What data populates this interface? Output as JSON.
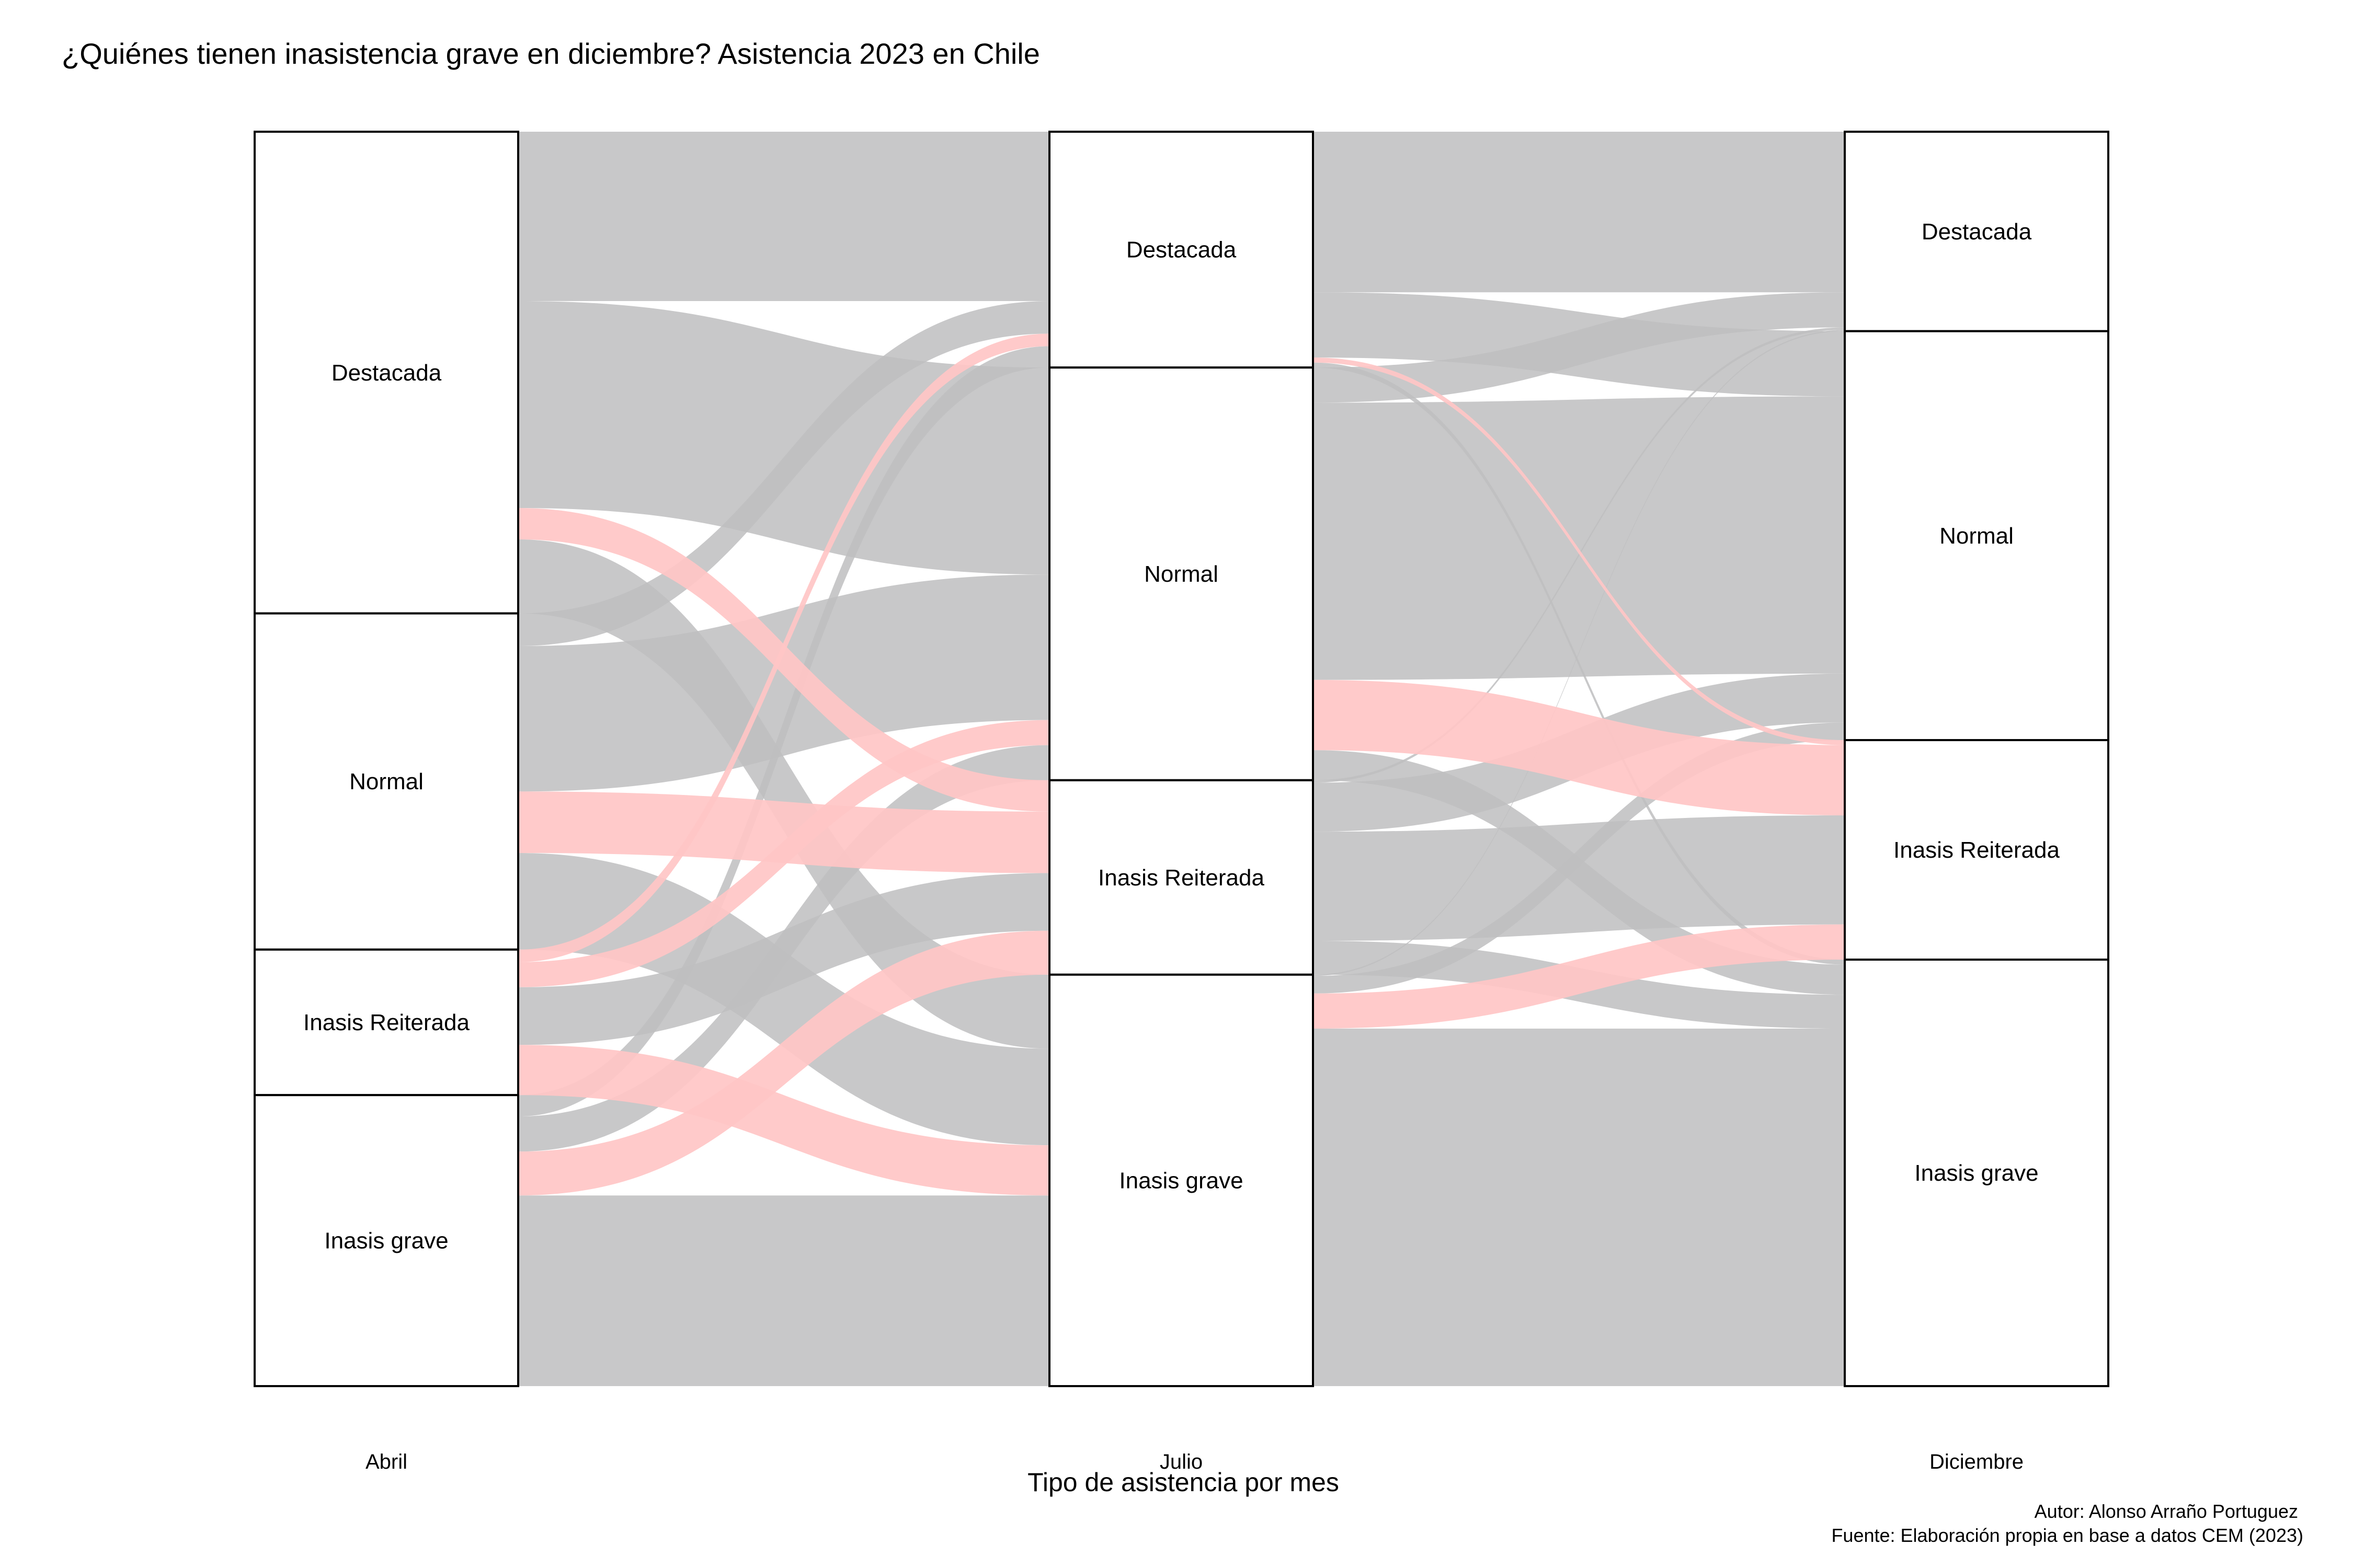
{
  "chart_data": {
    "type": "alluvial",
    "title": "¿Quiénes tienen inasistencia grave en diciembre? Asistencia 2023 en Chile",
    "xlabel": "Tipo de asistencia por mes",
    "axes": [
      "Abril",
      "Julio",
      "Diciembre"
    ],
    "categories": [
      "Destacada",
      "Normal",
      "Inasis Reiterada",
      "Inasis grave"
    ],
    "highlight_target": "Inasis Reiterada",
    "colors": {
      "highlight": "#ffc6c6",
      "flow": "#bebec0",
      "node_stroke": "#000000",
      "node_fill": "#ffffff"
    },
    "stratum_shares": {
      "Abril": [
        0.384,
        0.268,
        0.116,
        0.232
      ],
      "Julio": [
        0.188,
        0.329,
        0.155,
        0.328
      ],
      "Diciembre": [
        0.159,
        0.326,
        0.175,
        0.34
      ]
    },
    "flows_abril_julio": {
      "Destacada": [
        0.135,
        0.165,
        0.025,
        0.059
      ],
      "Normal": [
        0.026,
        0.116,
        0.049,
        0.077
      ],
      "Inasis Reiterada": [
        0.01,
        0.02,
        0.046,
        0.04
      ],
      "Inasis grave": [
        0.017,
        0.028,
        0.035,
        0.152
      ]
    },
    "flows_julio_diciembre": {
      "Destacada": [
        0.128,
        0.052,
        0.004,
        0.004
      ],
      "Normal": [
        0.028,
        0.221,
        0.056,
        0.024
      ],
      "Inasis Reiterada": [
        0.002,
        0.039,
        0.087,
        0.027
      ],
      "Inasis grave": [
        0.001,
        0.014,
        0.028,
        0.285
      ]
    },
    "caption": {
      "author": "Autor: Alonso Arraño Portuguez",
      "source": "Fuente: Elaboración propia en base a datos CEM (2023)"
    }
  }
}
